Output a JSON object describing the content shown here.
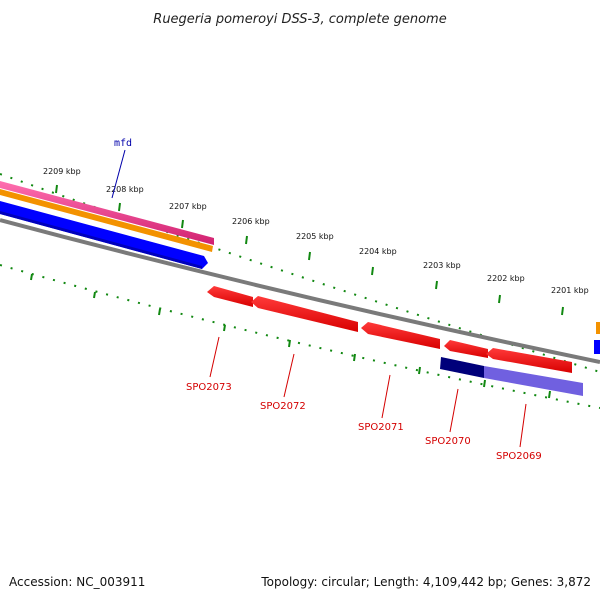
{
  "title": "Ruegeria pomeroyi DSS-3, complete genome",
  "footer": {
    "accession": "Accession: NC_003911",
    "topology": "Topology: circular; Length: 4,109,442 bp; Genes: 3,872"
  },
  "ticks": [
    "2209 kbp",
    "2208 kbp",
    "2207 kbp",
    "2206 kbp",
    "2205 kbp",
    "2204 kbp",
    "2203 kbp",
    "2202 kbp",
    "2201 kbp"
  ],
  "genes_top": [
    {
      "name": "mfd",
      "color": "#0000aa"
    }
  ],
  "genes_bottom": [
    {
      "name": "SPO2073",
      "color": "#d40000"
    },
    {
      "name": "SPO2072",
      "color": "#d40000"
    },
    {
      "name": "SPO2071",
      "color": "#d40000"
    },
    {
      "name": "SPO2070",
      "color": "#d40000"
    },
    {
      "name": "SPO2069",
      "color": "#d40000"
    }
  ],
  "colors": {
    "tick_green": "#118811",
    "pink": "#e8318a",
    "orange": "#f39200",
    "blue": "#0000ff",
    "backbone": "#808080",
    "red": "#ff0000",
    "navy": "#00007a",
    "lavender": "#7060e0"
  }
}
